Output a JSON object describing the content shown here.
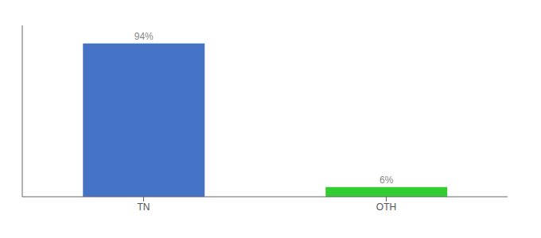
{
  "chart_data": {
    "type": "bar",
    "categories": [
      "TN",
      "OTH"
    ],
    "values": [
      94,
      6
    ],
    "value_labels": [
      "94%",
      "6%"
    ],
    "colors": [
      "#4472c4",
      "#33cc33"
    ],
    "ylim": [
      0,
      105
    ],
    "data_labels": true,
    "grid": false,
    "tick_labels": "x"
  }
}
